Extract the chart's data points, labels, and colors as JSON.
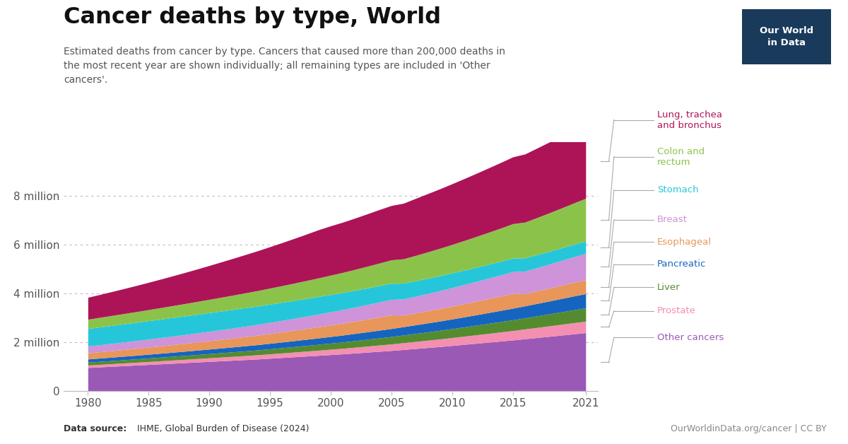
{
  "title": "Cancer deaths by type, World",
  "subtitle": "Estimated deaths from cancer by type. Cancers that caused more than 200,000 deaths in\nthe most recent year are shown individually; all remaining types are included in 'Other\ncancers'.",
  "years": [
    1980,
    1981,
    1982,
    1983,
    1984,
    1985,
    1986,
    1987,
    1988,
    1989,
    1990,
    1991,
    1992,
    1993,
    1994,
    1995,
    1996,
    1997,
    1998,
    1999,
    2000,
    2001,
    2002,
    2003,
    2004,
    2005,
    2006,
    2007,
    2008,
    2009,
    2010,
    2011,
    2012,
    2013,
    2014,
    2015,
    2016,
    2017,
    2018,
    2019,
    2020,
    2021
  ],
  "series": {
    "Other cancers": {
      "color": "#9B59B6",
      "data": [
        950000,
        975000,
        1000000,
        1025000,
        1050000,
        1075000,
        1100000,
        1125000,
        1150000,
        1175000,
        1200000,
        1225000,
        1250000,
        1275000,
        1300000,
        1330000,
        1360000,
        1390000,
        1420000,
        1450000,
        1480000,
        1510000,
        1545000,
        1580000,
        1615000,
        1650000,
        1690000,
        1730000,
        1770000,
        1810000,
        1855000,
        1900000,
        1945000,
        1990000,
        2035000,
        2080000,
        2130000,
        2180000,
        2230000,
        2280000,
        2330000,
        2380000
      ]
    },
    "Prostate": {
      "color": "#F48FB1",
      "data": [
        100000,
        104000,
        108000,
        112000,
        116000,
        121000,
        126000,
        131000,
        136000,
        141000,
        147000,
        153000,
        159000,
        165000,
        172000,
        179000,
        186000,
        194000,
        202000,
        210000,
        219000,
        228000,
        237000,
        247000,
        257000,
        267000,
        278000,
        289000,
        300000,
        311000,
        323000,
        335000,
        347000,
        360000,
        373000,
        386000,
        400000,
        414000,
        428000,
        443000,
        458000,
        470000
      ]
    },
    "Liver": {
      "color": "#558B2F",
      "data": [
        120000,
        124000,
        128000,
        133000,
        138000,
        143000,
        148000,
        154000,
        160000,
        166000,
        172000,
        179000,
        186000,
        193000,
        200000,
        208000,
        216000,
        224000,
        233000,
        242000,
        251000,
        261000,
        271000,
        282000,
        293000,
        304000,
        316000,
        328000,
        341000,
        354000,
        367000,
        381000,
        396000,
        411000,
        426000,
        442000,
        458000,
        475000,
        492000,
        510000,
        528000,
        546000
      ]
    },
    "Pancreatic": {
      "color": "#1565C0",
      "data": [
        130000,
        135000,
        140000,
        145000,
        150000,
        156000,
        162000,
        168000,
        174000,
        181000,
        188000,
        195000,
        202000,
        210000,
        218000,
        226000,
        235000,
        244000,
        253000,
        263000,
        273000,
        283000,
        294000,
        305000,
        317000,
        329000,
        342000,
        355000,
        369000,
        383000,
        397000,
        412000,
        427000,
        443000,
        459000,
        476000,
        493000,
        511000,
        529000,
        548000,
        568000,
        585000
      ]
    },
    "Esophageal": {
      "color": "#E8965A",
      "data": [
        250000,
        258000,
        266000,
        274000,
        283000,
        292000,
        301000,
        311000,
        321000,
        331000,
        342000,
        353000,
        364000,
        376000,
        388000,
        401000,
        414000,
        428000,
        442000,
        457000,
        472000,
        488000,
        504000,
        521000,
        539000,
        557000,
        476000,
        488000,
        500000,
        513000,
        527000,
        542000,
        557000,
        573000,
        589000,
        606000,
        500000,
        514000,
        528000,
        542000,
        556000,
        570000
      ]
    },
    "Breast": {
      "color": "#CE93D8",
      "data": [
        280000,
        289000,
        298000,
        308000,
        318000,
        328000,
        339000,
        350000,
        362000,
        374000,
        386000,
        399000,
        413000,
        427000,
        441000,
        456000,
        471000,
        487000,
        504000,
        521000,
        539000,
        557000,
        576000,
        596000,
        617000,
        638000,
        660000,
        683000,
        707000,
        732000,
        757000,
        783000,
        810000,
        837000,
        865000,
        894000,
        923000,
        953000,
        984000,
        1016000,
        1049000,
        1083000
      ]
    },
    "Stomach": {
      "color": "#26C6DA",
      "data": [
        720000,
        730000,
        738000,
        745000,
        751000,
        756000,
        760000,
        763000,
        765000,
        766000,
        766000,
        765000,
        763000,
        760000,
        756000,
        751000,
        745000,
        738000,
        730000,
        721000,
        712000,
        702000,
        692000,
        682000,
        671000,
        660000,
        649000,
        638000,
        627000,
        616000,
        605000,
        594000,
        584000,
        574000,
        564000,
        555000,
        546000,
        537000,
        528000,
        520000,
        512000,
        505000
      ]
    },
    "Colon and rectum": {
      "color": "#8BC34A",
      "data": [
        380000,
        394000,
        408000,
        423000,
        438000,
        454000,
        471000,
        488000,
        506000,
        525000,
        545000,
        566000,
        587000,
        610000,
        633000,
        657000,
        682000,
        708000,
        735000,
        763000,
        793000,
        824000,
        856000,
        890000,
        925000,
        962000,
        1000000,
        1040000,
        1081000,
        1124000,
        1168000,
        1214000,
        1261000,
        1310000,
        1360000,
        1412000,
        1465000,
        1520000,
        1576000,
        1634000,
        1694000,
        1754000
      ]
    },
    "Lung, trachea and bronchus": {
      "color": "#AD1457",
      "data": [
        900000,
        940000,
        982000,
        1026000,
        1072000,
        1120000,
        1170000,
        1222000,
        1276000,
        1332000,
        1390000,
        1450000,
        1510000,
        1572000,
        1635000,
        1700000,
        1766000,
        1834000,
        1904000,
        1976000,
        2025000,
        2060000,
        2105000,
        2150000,
        2195000,
        2230000,
        2280000,
        2340000,
        2390000,
        2440000,
        2490000,
        2540000,
        2590000,
        2640000,
        2690000,
        2740000,
        2795000,
        2850000,
        2905000,
        2960000,
        3015000,
        3060000
      ]
    }
  },
  "series_order": [
    "Other cancers",
    "Prostate",
    "Liver",
    "Pancreatic",
    "Esophageal",
    "Breast",
    "Stomach",
    "Colon and rectum",
    "Lung, trachea and bronchus"
  ],
  "legend_order": [
    "Lung, trachea and bronchus",
    "Colon and rectum",
    "Stomach",
    "Breast",
    "Esophageal",
    "Pancreatic",
    "Liver",
    "Prostate",
    "Other cancers"
  ],
  "legend_labels": [
    "Lung, trachea\nand bronchus",
    "Colon and\nrectum",
    "Stomach",
    "Breast",
    "Esophageal",
    "Pancreatic",
    "Liver",
    "Prostate",
    "Other cancers"
  ],
  "yticks": [
    0,
    2000000,
    4000000,
    6000000,
    8000000
  ],
  "ytick_labels": [
    "0",
    "2 million",
    "4 million",
    "6 million",
    "8 million"
  ],
  "ylim": [
    0,
    10200000
  ],
  "xticks": [
    1980,
    1985,
    1990,
    1995,
    2000,
    2005,
    2010,
    2015,
    2021
  ],
  "footer_source_bold": "Data source:",
  "footer_source_normal": " IHME, Global Burden of Disease (2024)",
  "footer_right": "OurWorldinData.org/cancer | CC BY",
  "owid_box_color": "#1a3a5c",
  "owid_text": "Our World\nin Data",
  "bg_color": "#ffffff"
}
